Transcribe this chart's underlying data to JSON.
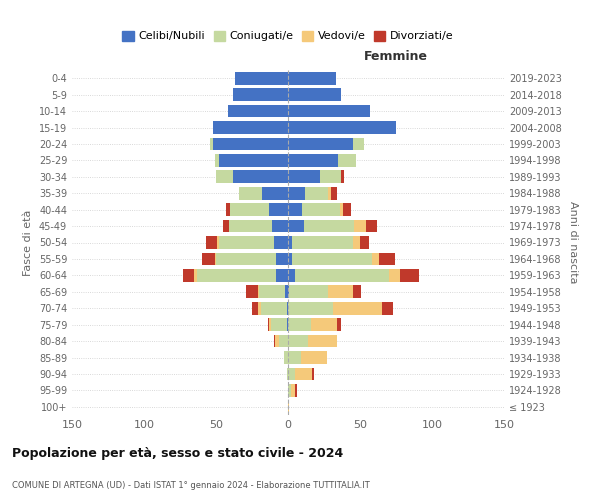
{
  "age_groups": [
    "100+",
    "95-99",
    "90-94",
    "85-89",
    "80-84",
    "75-79",
    "70-74",
    "65-69",
    "60-64",
    "55-59",
    "50-54",
    "45-49",
    "40-44",
    "35-39",
    "30-34",
    "25-29",
    "20-24",
    "15-19",
    "10-14",
    "5-9",
    "0-4"
  ],
  "birth_years": [
    "≤ 1923",
    "1924-1928",
    "1929-1933",
    "1934-1938",
    "1939-1943",
    "1944-1948",
    "1949-1953",
    "1954-1958",
    "1959-1963",
    "1964-1968",
    "1969-1973",
    "1974-1978",
    "1979-1983",
    "1984-1988",
    "1989-1993",
    "1994-1998",
    "1999-2003",
    "2004-2008",
    "2009-2013",
    "2014-2018",
    "2019-2023"
  ],
  "male": {
    "celibi": [
      0,
      0,
      0,
      0,
      0,
      1,
      1,
      2,
      8,
      8,
      10,
      11,
      13,
      18,
      38,
      48,
      52,
      52,
      42,
      38,
      37
    ],
    "coniugati": [
      0,
      0,
      1,
      3,
      6,
      11,
      18,
      18,
      55,
      42,
      38,
      30,
      27,
      16,
      12,
      3,
      2,
      0,
      0,
      0,
      0
    ],
    "vedovi": [
      0,
      0,
      0,
      0,
      3,
      1,
      2,
      1,
      2,
      1,
      1,
      0,
      0,
      0,
      0,
      0,
      0,
      0,
      0,
      0,
      0
    ],
    "divorziati": [
      0,
      0,
      0,
      0,
      1,
      1,
      4,
      8,
      8,
      9,
      8,
      4,
      3,
      0,
      0,
      0,
      0,
      0,
      0,
      0,
      0
    ]
  },
  "female": {
    "nubili": [
      0,
      0,
      0,
      0,
      0,
      0,
      0,
      1,
      5,
      3,
      3,
      11,
      10,
      12,
      22,
      35,
      45,
      75,
      57,
      37,
      33
    ],
    "coniugate": [
      0,
      2,
      5,
      9,
      14,
      16,
      31,
      27,
      65,
      55,
      42,
      35,
      26,
      16,
      15,
      12,
      8,
      0,
      0,
      0,
      0
    ],
    "vedove": [
      1,
      3,
      12,
      18,
      20,
      18,
      34,
      17,
      8,
      5,
      5,
      8,
      2,
      2,
      0,
      0,
      0,
      0,
      0,
      0,
      0
    ],
    "divorziate": [
      0,
      1,
      1,
      0,
      0,
      3,
      8,
      6,
      13,
      11,
      6,
      8,
      6,
      4,
      2,
      0,
      0,
      0,
      0,
      0,
      0
    ]
  },
  "colors": {
    "celibi": "#4472C4",
    "coniugati": "#c5d9a0",
    "vedovi": "#f5c97a",
    "divorziati": "#c0392b"
  },
  "xlim": 150,
  "title": "Popolazione per età, sesso e stato civile - 2024",
  "subtitle": "COMUNE DI ARTEGNA (UD) - Dati ISTAT 1° gennaio 2024 - Elaborazione TUTTITALIA.IT",
  "ylabel_left": "Fasce di età",
  "ylabel_right": "Anni di nascita",
  "xlabel_female": "Femmine",
  "legend_labels": [
    "Celibi/Nubili",
    "Coniugati/e",
    "Vedovi/e",
    "Divorziati/e"
  ],
  "bg_color": "#ffffff",
  "grid_color": "#cccccc"
}
